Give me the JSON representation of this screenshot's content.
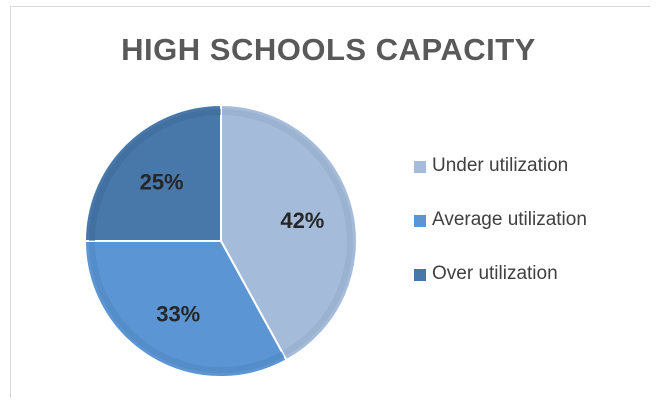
{
  "chart_data": {
    "type": "pie",
    "title": "HIGH SCHOOLS CAPACITY",
    "categories": [
      "Under utilization",
      "Average utilization",
      "Over utilization"
    ],
    "values": [
      42,
      33,
      25
    ],
    "labels": [
      "42%",
      "33%",
      "25%"
    ],
    "colors": [
      "#a4bcda",
      "#5b95d3",
      "#4878aa"
    ],
    "stroke_colors": [
      "#93acc8",
      "#4f86c0",
      "#3e6a98"
    ],
    "legend_position": "right"
  }
}
